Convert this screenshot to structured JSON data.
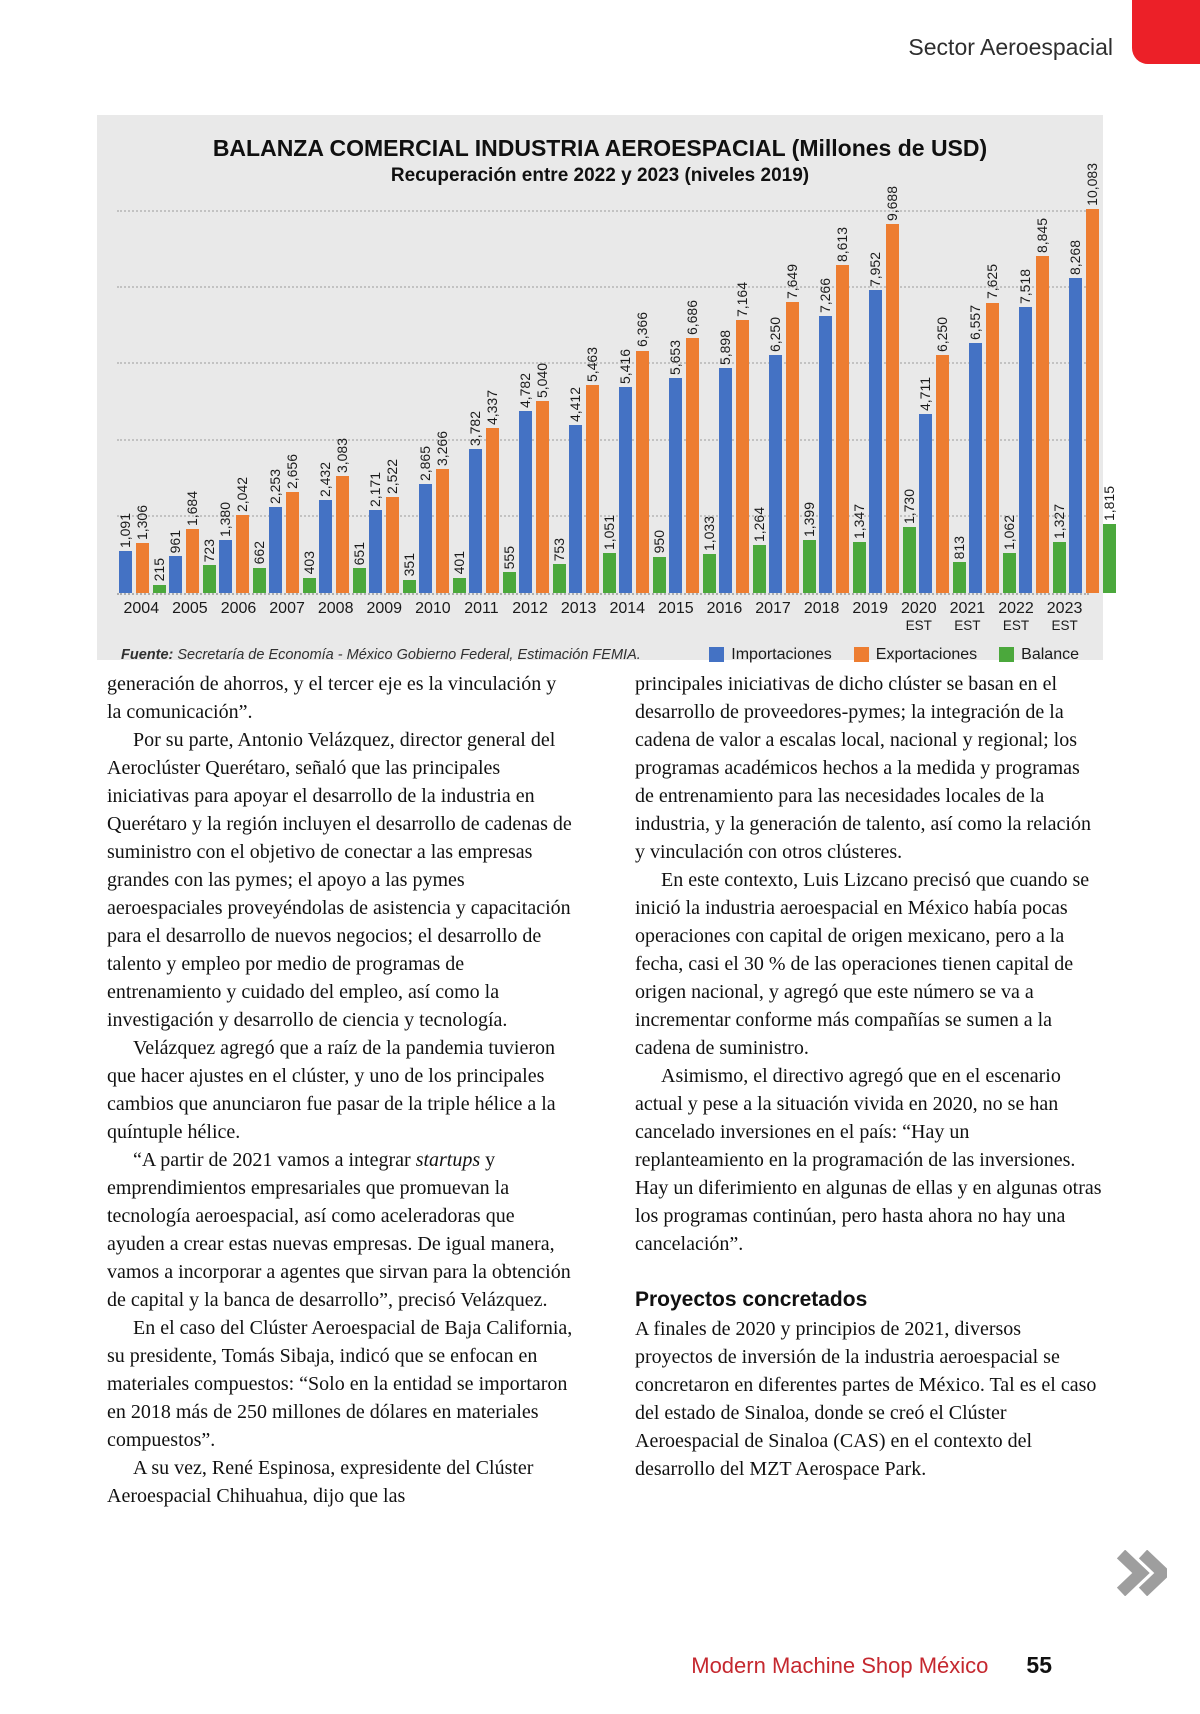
{
  "header": {
    "section_label": "Sector Aeroespacial"
  },
  "chart_data": {
    "type": "bar",
    "title": "BALANZA COMERCIAL INDUSTRIA AEROESPACIAL (Millones de USD)",
    "subtitle": "Recuperación entre 2022 y 2023 (niveles 2019)",
    "categories": [
      {
        "year": "2004",
        "sub": ""
      },
      {
        "year": "2005",
        "sub": ""
      },
      {
        "year": "2006",
        "sub": ""
      },
      {
        "year": "2007",
        "sub": ""
      },
      {
        "year": "2008",
        "sub": ""
      },
      {
        "year": "2009",
        "sub": ""
      },
      {
        "year": "2010",
        "sub": ""
      },
      {
        "year": "2011",
        "sub": ""
      },
      {
        "year": "2012",
        "sub": ""
      },
      {
        "year": "2013",
        "sub": ""
      },
      {
        "year": "2014",
        "sub": ""
      },
      {
        "year": "2015",
        "sub": ""
      },
      {
        "year": "2016",
        "sub": ""
      },
      {
        "year": "2017",
        "sub": ""
      },
      {
        "year": "2018",
        "sub": ""
      },
      {
        "year": "2019",
        "sub": ""
      },
      {
        "year": "2020",
        "sub": "EST"
      },
      {
        "year": "2021",
        "sub": "EST"
      },
      {
        "year": "2022",
        "sub": "EST"
      },
      {
        "year": "2023",
        "sub": "EST"
      }
    ],
    "series": [
      {
        "name": "Importaciones",
        "color": "#4472C4",
        "values": [
          1091,
          961,
          1380,
          2253,
          2432,
          2171,
          2865,
          3782,
          4782,
          4412,
          5416,
          5653,
          5898,
          6250,
          7266,
          7952,
          4711,
          6557,
          7518,
          8268
        ]
      },
      {
        "name": "Exportaciones",
        "color": "#ED7D31",
        "values": [
          1306,
          1684,
          2042,
          2656,
          3083,
          2522,
          3266,
          4337,
          5040,
          5463,
          6366,
          6686,
          7164,
          7649,
          8613,
          9688,
          6250,
          7625,
          8845,
          10083
        ]
      },
      {
        "name": "Balance",
        "color": "#4BA83C",
        "values": [
          215,
          723,
          662,
          403,
          651,
          351,
          401,
          555,
          753,
          1051,
          950,
          1033,
          1264,
          1399,
          1347,
          1730,
          813,
          1062,
          1327,
          1815
        ]
      }
    ],
    "ylim": [
      0,
      10500
    ],
    "gridlines": [
      2000,
      4000,
      6000,
      8000,
      10000
    ],
    "grid": "dotted-horizontal",
    "legend_position": "bottom-right",
    "source": {
      "prefix": "Fuente:",
      "text": " Secretaría de Economía - México Gobierno Federal, Estimación FEMIA."
    }
  },
  "article": {
    "left_column": [
      {
        "kind": "p",
        "indent": false,
        "segments": [
          {
            "t": "generación de ahorros, y el tercer eje es la vinculación y la comunicación”."
          }
        ]
      },
      {
        "kind": "p",
        "indent": true,
        "segments": [
          {
            "t": "Por su parte, Antonio Velázquez, director general del Aeroclúster Querétaro, señaló que las principales iniciativas para apoyar el desarrollo de la industria en Querétaro y la región incluyen el desarrollo de cadenas de suministro con el objetivo de conectar a las empresas grandes con las pymes; el apoyo a las pymes aeroespaciales proveyéndolas de asistencia y capacitación para el desarrollo de nuevos negocios; el desarrollo de talento y empleo por medio de programas de entrenamiento y cuidado del empleo, así como la investigación y desarrollo de ciencia y tecnología."
          }
        ]
      },
      {
        "kind": "p",
        "indent": true,
        "segments": [
          {
            "t": "Velázquez agregó que a raíz de la pandemia tuvieron que hacer ajustes en el clúster, y uno de los principales cambios que anunciaron fue pasar de la triple hélice a la quíntuple hélice."
          }
        ]
      },
      {
        "kind": "p",
        "indent": true,
        "segments": [
          {
            "t": "“A partir de 2021 vamos a integrar "
          },
          {
            "t": "startups",
            "i": true
          },
          {
            "t": " y emprendimientos empresariales que promuevan la tecnología aeroespacial, así como aceleradoras que ayuden a crear estas nuevas empresas. De igual manera, vamos a incorporar a agentes que sirvan para la obtención de capital y la banca de desarrollo”, precisó Velázquez."
          }
        ]
      },
      {
        "kind": "p",
        "indent": true,
        "segments": [
          {
            "t": "En el caso del Clúster Aeroespacial de Baja California, su presidente, Tomás Sibaja, indicó que se enfocan en materiales compuestos: “Solo en la entidad se importaron en 2018 más de 250 millones de dólares en materiales compuestos”."
          }
        ]
      },
      {
        "kind": "p",
        "indent": true,
        "segments": [
          {
            "t": "A su vez, René Espinosa, expresidente del Clúster Aeroespacial Chihuahua, dijo que las"
          }
        ]
      }
    ],
    "right_column": [
      {
        "kind": "p",
        "indent": false,
        "segments": [
          {
            "t": "principales iniciativas de dicho clúster se basan en el desarrollo de proveedores-pymes; la integración de la cadena de valor a escalas local, nacional y regional; los programas académicos hechos a la medida y programas de entrenamiento para las necesidades locales de la industria, y la generación de talento, así como la relación y vinculación con otros clústeres."
          }
        ]
      },
      {
        "kind": "p",
        "indent": true,
        "segments": [
          {
            "t": "En este contexto, Luis Lizcano precisó que cuando se inició la industria aeroespacial en México había pocas operaciones con capital de origen mexicano, pero a la fecha, casi el 30 % de las operaciones tienen capital de origen nacional, y agregó que este número se va a incrementar conforme más compañías se sumen a la cadena de suministro."
          }
        ]
      },
      {
        "kind": "p",
        "indent": true,
        "segments": [
          {
            "t": "Asimismo, el directivo agregó que en el escenario actual y pese a la situación vivida en 2020, no se han cancelado inversiones en el país: “Hay un replanteamiento en la programación de las inversiones. Hay un diferimiento en algunas de ellas y en algunas otras los programas continúan, pero hasta ahora no hay una cancelación”."
          }
        ]
      },
      {
        "kind": "h",
        "text": "Proyectos concretados"
      },
      {
        "kind": "p",
        "indent": false,
        "segments": [
          {
            "t": "A finales de 2020 y principios de 2021, diversos proyectos de inversión de la industria aeroespacial se concretaron en diferentes partes de México. Tal es el caso del estado de Sinaloa, donde se creó el Clúster Aeroespacial de Sinaloa (CAS) en el contexto del desarrollo del MZT Aerospace Park."
          }
        ]
      }
    ]
  },
  "footer": {
    "brand": "Modern Machine Shop México",
    "page_number": "55"
  },
  "icons": {
    "next_pages": "double-chevron-right-icon"
  }
}
